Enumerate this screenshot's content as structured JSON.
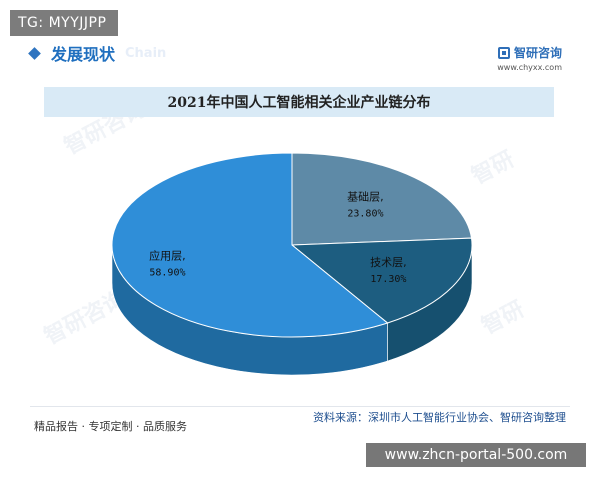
{
  "tag": {
    "text": "TG: MYYJJPP"
  },
  "section": {
    "title": "发展现状",
    "ghost": "Chain"
  },
  "brand": {
    "name": "智研咨询",
    "url": "www.chyxx.com"
  },
  "chart_data": {
    "type": "pie",
    "title": "2021年中国人工智能相关企业产业链分布",
    "slices": [
      {
        "label": "基础层,",
        "value": 23.8,
        "value_text": "23.80%",
        "color": "#5e8aa7"
      },
      {
        "label": "技术层,",
        "value": 17.3,
        "value_text": "17.30%",
        "color": "#1d5d80"
      },
      {
        "label": "应用层,",
        "value": 58.9,
        "value_text": "58.90%",
        "color": "#2f8ed8"
      }
    ],
    "style": "3d",
    "legend": "none"
  },
  "footer": {
    "left": "精品报告 · 专项定制 · 品质服务",
    "right": "资料来源：深圳市人工智能行业协会、智研咨询整理"
  },
  "watermark": {
    "brand": "智研咨询",
    "url": "www.zhcn-portal-500.com"
  },
  "colors": {
    "accent": "#2f74c0",
    "title_band": "#d9eaf6",
    "side_dark": "#16506f",
    "side_mid": "#1f6aa0"
  }
}
